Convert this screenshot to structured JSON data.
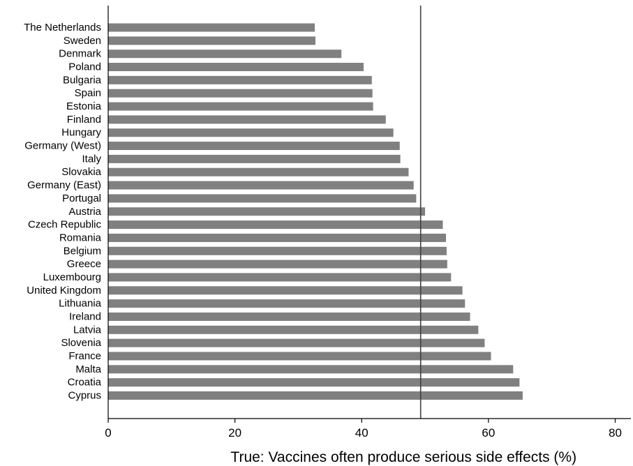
{
  "chart_data": {
    "type": "bar",
    "orientation": "horizontal",
    "xlabel": "True: Vaccines often produce serious side effects (%)",
    "ylabel": "",
    "xlim": [
      0,
      82
    ],
    "xticks": [
      0,
      20,
      40,
      60,
      80
    ],
    "grid": false,
    "legend": "none",
    "bar_color": "#808080",
    "reference_line": {
      "x": 49.3,
      "color": "#404040"
    },
    "categories": [
      "The Netherlands",
      "Sweden",
      "Denmark",
      "Poland",
      "Bulgaria",
      "Spain",
      "Estonia",
      "Finland",
      "Hungary",
      "Germany (West)",
      "Italy",
      "Slovakia",
      "Germany (East)",
      "Portugal",
      "Austria",
      "Czech Republic",
      "Romania",
      "Belgium",
      "Greece",
      "Luxembourg",
      "United Kingdom",
      "Lithuania",
      "Ireland",
      "Latvia",
      "Slovenia",
      "France",
      "Malta",
      "Croatia",
      "Cyprus"
    ],
    "values": [
      32.6,
      32.7,
      36.8,
      40.3,
      41.6,
      41.7,
      41.8,
      43.8,
      45.0,
      46.0,
      46.1,
      47.4,
      48.2,
      48.6,
      50.0,
      52.8,
      53.3,
      53.4,
      53.5,
      54.1,
      55.9,
      56.3,
      57.1,
      58.4,
      59.4,
      60.4,
      63.9,
      64.9,
      65.4
    ]
  }
}
